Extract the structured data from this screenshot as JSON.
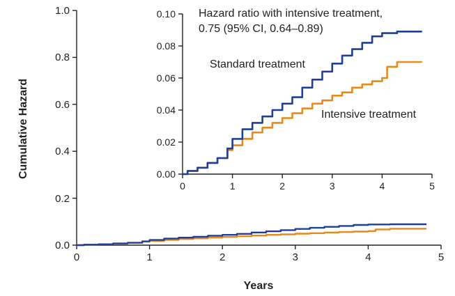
{
  "chart_data": {
    "type": "line",
    "xlabel": "Years",
    "ylabel": "Cumulative Hazard",
    "xlim": [
      0,
      5
    ],
    "ylim": [
      0,
      1.0
    ],
    "x_ticks": [
      "0",
      "1",
      "2",
      "3",
      "4",
      "5"
    ],
    "y_ticks": [
      "0.0",
      "0.2",
      "0.4",
      "0.6",
      "0.8",
      "1.0"
    ],
    "grid": false,
    "colors": {
      "standard": "#1f3e9a",
      "intensive": "#e8891a"
    },
    "series": [
      {
        "name": "Standard treatment",
        "color": "#1f3e9a",
        "x": [
          0,
          0.1,
          0.3,
          0.5,
          0.7,
          0.9,
          1.0,
          1.2,
          1.4,
          1.6,
          1.8,
          2.0,
          2.2,
          2.4,
          2.6,
          2.8,
          3.0,
          3.2,
          3.4,
          3.6,
          3.8,
          4.0,
          4.3,
          4.8
        ],
        "y": [
          0,
          0.002,
          0.004,
          0.007,
          0.01,
          0.016,
          0.022,
          0.028,
          0.032,
          0.036,
          0.04,
          0.044,
          0.048,
          0.054,
          0.059,
          0.064,
          0.069,
          0.074,
          0.078,
          0.082,
          0.086,
          0.088,
          0.089,
          0.089
        ]
      },
      {
        "name": "Intensive treatment",
        "color": "#e8891a",
        "x": [
          0,
          0.1,
          0.3,
          0.5,
          0.7,
          0.9,
          1.0,
          1.2,
          1.4,
          1.6,
          1.8,
          2.0,
          2.2,
          2.4,
          2.6,
          2.8,
          3.0,
          3.2,
          3.4,
          3.6,
          3.8,
          4.0,
          4.1,
          4.3,
          4.8
        ],
        "y": [
          0,
          0.002,
          0.004,
          0.007,
          0.01,
          0.015,
          0.018,
          0.022,
          0.026,
          0.029,
          0.032,
          0.035,
          0.038,
          0.041,
          0.044,
          0.046,
          0.049,
          0.051,
          0.054,
          0.056,
          0.058,
          0.06,
          0.067,
          0.07,
          0.07
        ]
      }
    ],
    "inset": {
      "type": "line",
      "xlim": [
        0,
        5
      ],
      "ylim": [
        0,
        0.1
      ],
      "x_ticks": [
        "0",
        "1",
        "2",
        "3",
        "4",
        "5"
      ],
      "y_ticks": [
        "0.00",
        "0.02",
        "0.04",
        "0.06",
        "0.08",
        "0.10"
      ],
      "annotations": {
        "hazard_line1": "Hazard ratio with intensive treatment,",
        "hazard_line2": "0.75 (95% CI, 0.64–0.89)",
        "standard_label": "Standard treatment",
        "intensive_label": "Intensive treatment"
      }
    }
  }
}
